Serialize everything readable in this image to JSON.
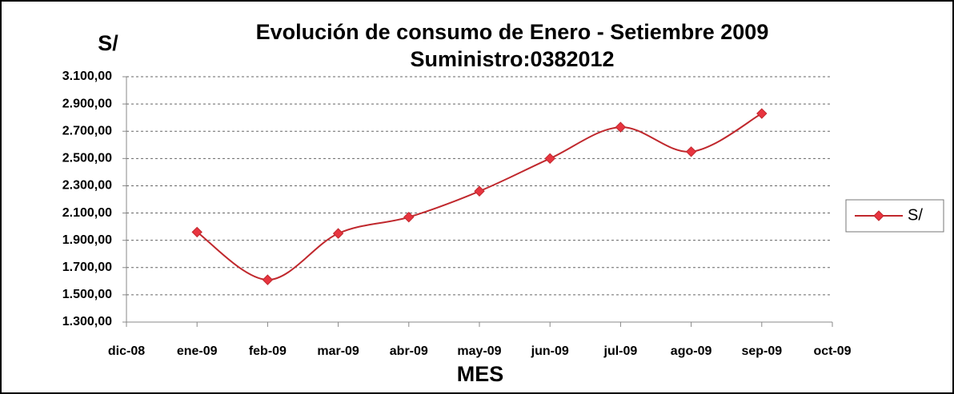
{
  "chart_data": {
    "type": "line",
    "title": "Evolución de consumo de Enero - Setiembre 2009",
    "subtitle": "Suministro:0382012",
    "y_label": "S/",
    "x_label": "MES",
    "categories": [
      "dic-08",
      "ene-09",
      "feb-09",
      "mar-09",
      "abr-09",
      "may-09",
      "jun-09",
      "jul-09",
      "ago-09",
      "sep-09",
      "oct-09"
    ],
    "series": [
      {
        "name": "S/",
        "color": "#c0282d",
        "values": [
          null,
          1960,
          1610,
          1950,
          2070,
          2260,
          2500,
          2730,
          2550,
          2830,
          null
        ]
      }
    ],
    "ylim": [
      1300,
      3100
    ],
    "yticks": [
      {
        "value": 1300,
        "label": "1.300,00"
      },
      {
        "value": 1500,
        "label": "1.500,00"
      },
      {
        "value": 1700,
        "label": "1.700,00"
      },
      {
        "value": 1900,
        "label": "1.900,00"
      },
      {
        "value": 2100,
        "label": "2.100,00"
      },
      {
        "value": 2300,
        "label": "2.300,00"
      },
      {
        "value": 2500,
        "label": "2.500,00"
      },
      {
        "value": 2700,
        "label": "2.700,00"
      },
      {
        "value": 2900,
        "label": "2.900,00"
      },
      {
        "value": 3100,
        "label": "3.100,00"
      }
    ],
    "grid": true,
    "legend": "right"
  }
}
